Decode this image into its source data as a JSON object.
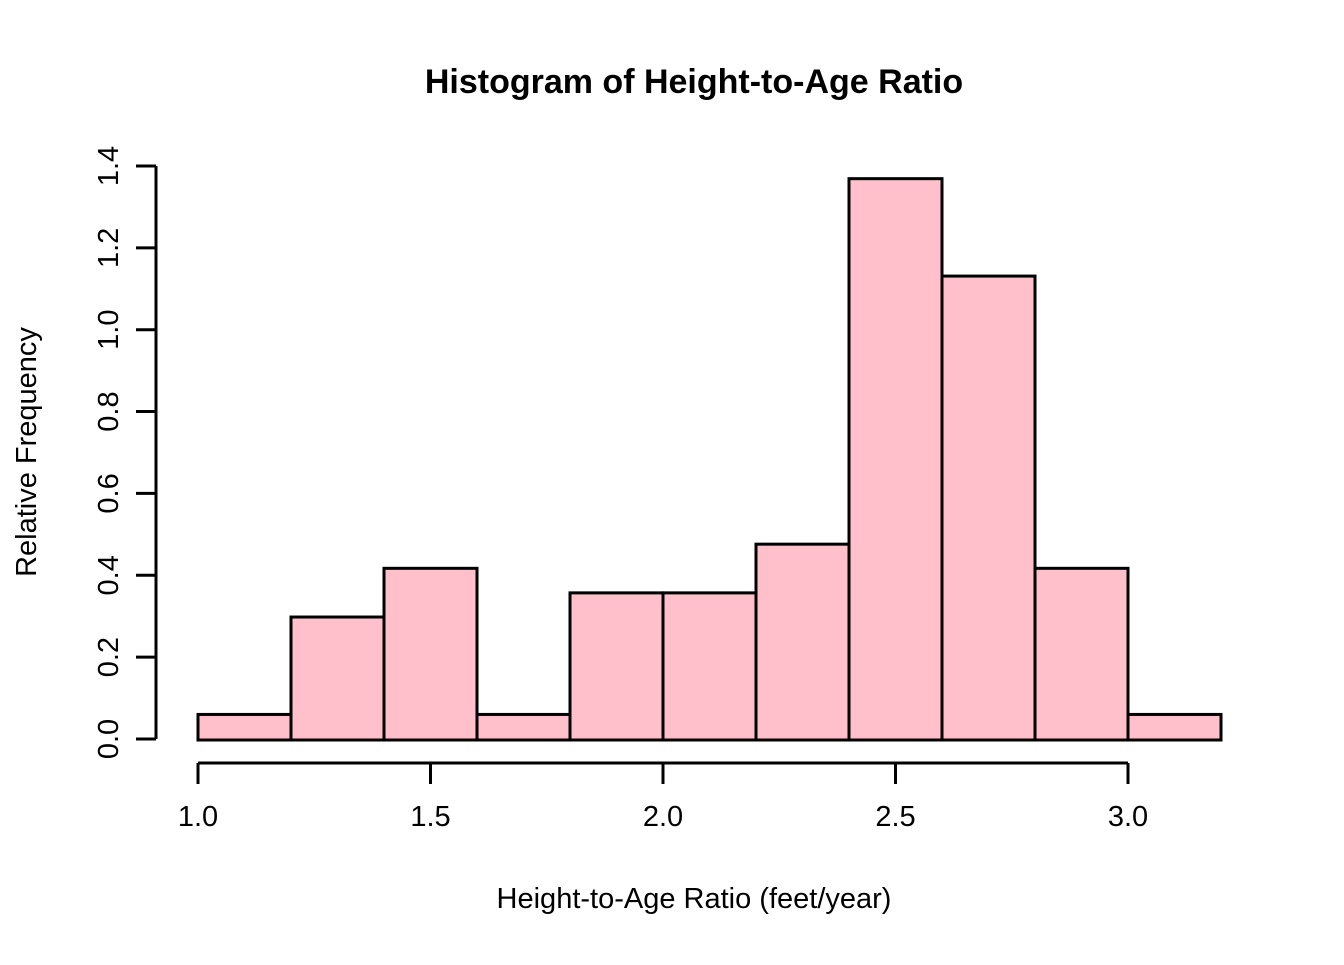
{
  "figure": {
    "background": "#FFFFFF"
  },
  "chart_data": {
    "type": "bar",
    "subtype": "histogram",
    "title": "Histogram of Height-to-Age Ratio",
    "xlabel": "Height-to-Age Ratio (feet/year)",
    "ylabel": "Relative Frequency",
    "bin_width": 0.2,
    "bin_edges": [
      1.0,
      1.2,
      1.4,
      1.6,
      1.8,
      2.0,
      2.2,
      2.4,
      2.6,
      2.8,
      3.0,
      3.2
    ],
    "values": [
      0.06,
      0.298,
      0.417,
      0.06,
      0.357,
      0.357,
      0.476,
      1.369,
      1.131,
      0.417,
      0.06
    ],
    "x_ticks": [
      1.0,
      1.5,
      2.0,
      2.5,
      3.0
    ],
    "x_tick_labels": [
      "1.0",
      "1.5",
      "2.0",
      "2.5",
      "3.0"
    ],
    "y_ticks": [
      0.0,
      0.2,
      0.4,
      0.6,
      0.8,
      1.0,
      1.2,
      1.4
    ],
    "y_tick_labels": [
      "0.0",
      "0.2",
      "0.4",
      "0.6",
      "0.8",
      "1.0",
      "1.2",
      "1.4"
    ],
    "xlim": [
      1.0,
      3.2
    ],
    "ylim": [
      0.0,
      1.4
    ],
    "grid": false,
    "bar_fill": "#FFC0CB",
    "bar_stroke": "#000000",
    "axis_color": "#000000"
  }
}
